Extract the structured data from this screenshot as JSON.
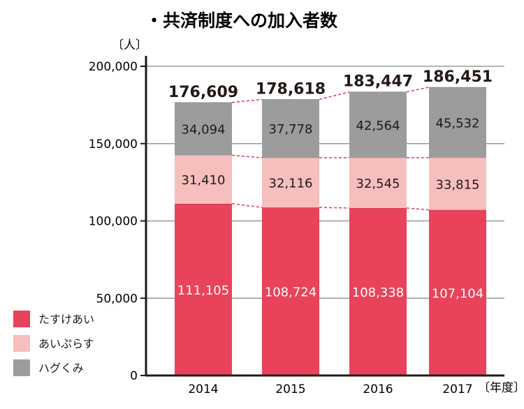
{
  "title": "・共済制度への加入者数",
  "chart_data": {
    "type": "bar",
    "stacked": true,
    "title": "・共済制度への加入者数",
    "ylabel": "〔人〕",
    "xlabel": "〔年度〕",
    "categories": [
      "2014",
      "2015",
      "2016",
      "2017"
    ],
    "ylim": [
      0,
      200000
    ],
    "yticks": [
      0,
      50000,
      100000,
      150000,
      200000
    ],
    "ytick_labels": [
      "0",
      "50,000",
      "100,000",
      "150,000",
      "200,000"
    ],
    "grid": true,
    "legend_position": "bottom-left",
    "series": [
      {
        "name": "たすけあい",
        "color": "#e8435a",
        "label_color": "#ffffff",
        "values": [
          111105,
          108724,
          108338,
          107104
        ],
        "labels": [
          "111,105",
          "108,724",
          "108,338",
          "107,104"
        ]
      },
      {
        "name": "あいぷらす",
        "color": "#f6bfbd",
        "label_color": "#231815",
        "values": [
          31410,
          32116,
          32545,
          33815
        ],
        "labels": [
          "31,410",
          "32,116",
          "32,545",
          "33,815"
        ]
      },
      {
        "name": "ハグくみ",
        "color": "#9c9c9c",
        "label_color": "#231815",
        "values": [
          34094,
          37778,
          42564,
          45532
        ],
        "labels": [
          "34,094",
          "37,778",
          "42,564",
          "45,532"
        ]
      }
    ],
    "totals": [
      176609,
      178618,
      183447,
      186451
    ],
    "total_labels": [
      "176,609",
      "178,618",
      "183,447",
      "186,451"
    ],
    "connector_color": "#e8435a"
  }
}
